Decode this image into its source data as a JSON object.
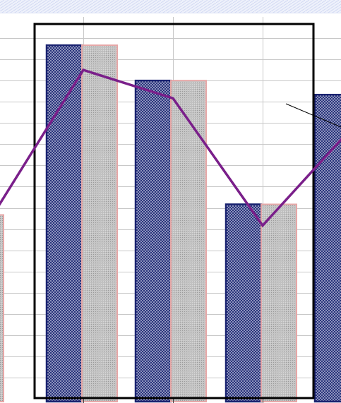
{
  "chart_data": {
    "type": "bar",
    "categories": [
      "",
      "",
      "",
      "",
      ""
    ],
    "series": [
      {
        "values": [
          null,
          100,
          90,
          55,
          86
        ]
      },
      {
        "values": [
          52,
          100,
          90,
          55,
          null
        ]
      }
    ],
    "line_series": [
      {
        "values": [
          52,
          93,
          85,
          49,
          77
        ]
      }
    ],
    "title": "",
    "xlabel": "",
    "ylabel": "",
    "ylim": [
      0,
      108
    ],
    "grid": true,
    "legend": "none",
    "highlight_box": {
      "from_category": 1,
      "to_category": 3
    },
    "leader_line": true,
    "colors": {
      "bar_dark_fill": "#26317a",
      "bar_dark_border": "#1a2370",
      "bar_light_fill": "#b6b6b6",
      "bar_light_border": "#e6a7a7",
      "line": "#7a1f8a",
      "grid": "#c8c8c8",
      "top_strip": "#dfe4f7",
      "frame": "#000000"
    }
  }
}
